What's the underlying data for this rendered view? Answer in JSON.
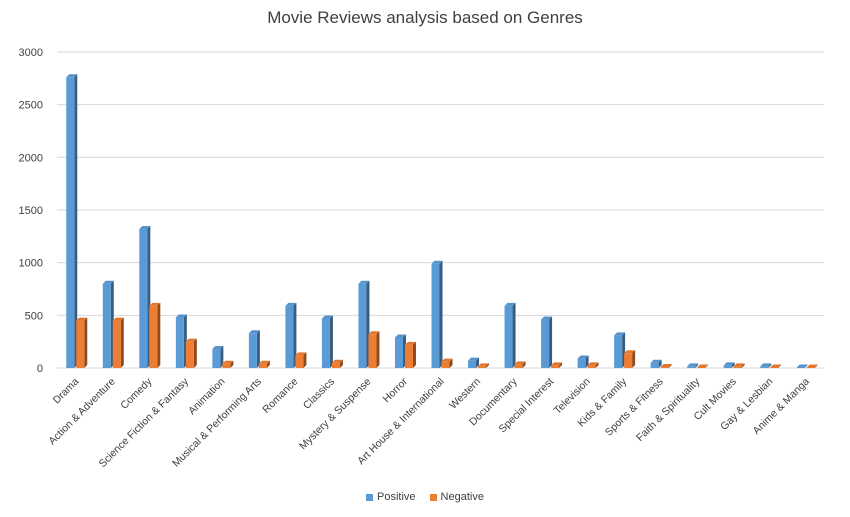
{
  "chart_data": {
    "type": "bar",
    "title": "Movie Reviews analysis based on Genres",
    "xlabel": "",
    "ylabel": "",
    "ylim": [
      0,
      3000
    ],
    "yticks": [
      0,
      500,
      1000,
      1500,
      2000,
      2500,
      3000
    ],
    "grid": true,
    "legend_position": "bottom",
    "categories": [
      "Drama",
      "Action & Adventure",
      "Comedy",
      "Science Fiction & Fantasy",
      "Animation",
      "Musical & Performing Arts",
      "Romance",
      "Classics",
      "Mystery & Suspense",
      "Horror",
      "Art House & International",
      "Western",
      "Documentary",
      "Special Interest",
      "Television",
      "Kids & Family",
      "Sports & Fitness",
      "Faith & Spirituality",
      "Cult Movies",
      "Gay & Lesbian",
      "Anime & Manga"
    ],
    "series": [
      {
        "name": "Positive",
        "color": "#5b9bd5",
        "values": [
          2760,
          800,
          1320,
          480,
          180,
          330,
          590,
          470,
          800,
          290,
          990,
          70,
          590,
          460,
          90,
          310,
          50,
          15,
          25,
          15,
          5
        ]
      },
      {
        "name": "Negative",
        "color": "#ed7d31",
        "values": [
          450,
          450,
          590,
          250,
          40,
          40,
          120,
          50,
          320,
          220,
          60,
          15,
          35,
          25,
          25,
          140,
          10,
          5,
          15,
          5,
          5
        ]
      }
    ]
  }
}
